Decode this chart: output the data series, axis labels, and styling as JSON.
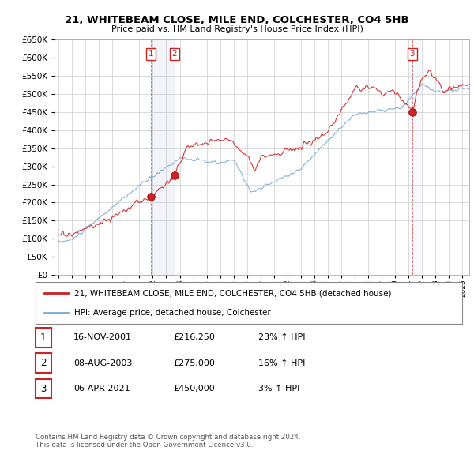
{
  "title": "21, WHITEBEAM CLOSE, MILE END, COLCHESTER, CO4 5HB",
  "subtitle": "Price paid vs. HM Land Registry's House Price Index (HPI)",
  "ylim": [
    0,
    650000
  ],
  "yticks": [
    0,
    50000,
    100000,
    150000,
    200000,
    250000,
    300000,
    350000,
    400000,
    450000,
    500000,
    550000,
    600000,
    650000
  ],
  "xlim_start": 1994.7,
  "xlim_end": 2025.5,
  "hpi_color": "#7aaad4",
  "price_color": "#cc2222",
  "bg_color": "#ffffff",
  "grid_color": "#cccccc",
  "sale_points": [
    {
      "year": 2001.88,
      "price": 216250,
      "label": "1"
    },
    {
      "year": 2003.6,
      "price": 275000,
      "label": "2"
    },
    {
      "year": 2021.27,
      "price": 450000,
      "label": "3"
    }
  ],
  "legend_entries": [
    "21, WHITEBEAM CLOSE, MILE END, COLCHESTER, CO4 5HB (detached house)",
    "HPI: Average price, detached house, Colchester"
  ],
  "table_rows": [
    {
      "num": "1",
      "date": "16-NOV-2001",
      "price": "£216,250",
      "change": "23% ↑ HPI"
    },
    {
      "num": "2",
      "date": "08-AUG-2003",
      "price": "£275,000",
      "change": "16% ↑ HPI"
    },
    {
      "num": "3",
      "date": "06-APR-2021",
      "price": "£450,000",
      "change": "3% ↑ HPI"
    }
  ],
  "footnote": "Contains HM Land Registry data © Crown copyright and database right 2024.\nThis data is licensed under the Open Government Licence v3.0."
}
